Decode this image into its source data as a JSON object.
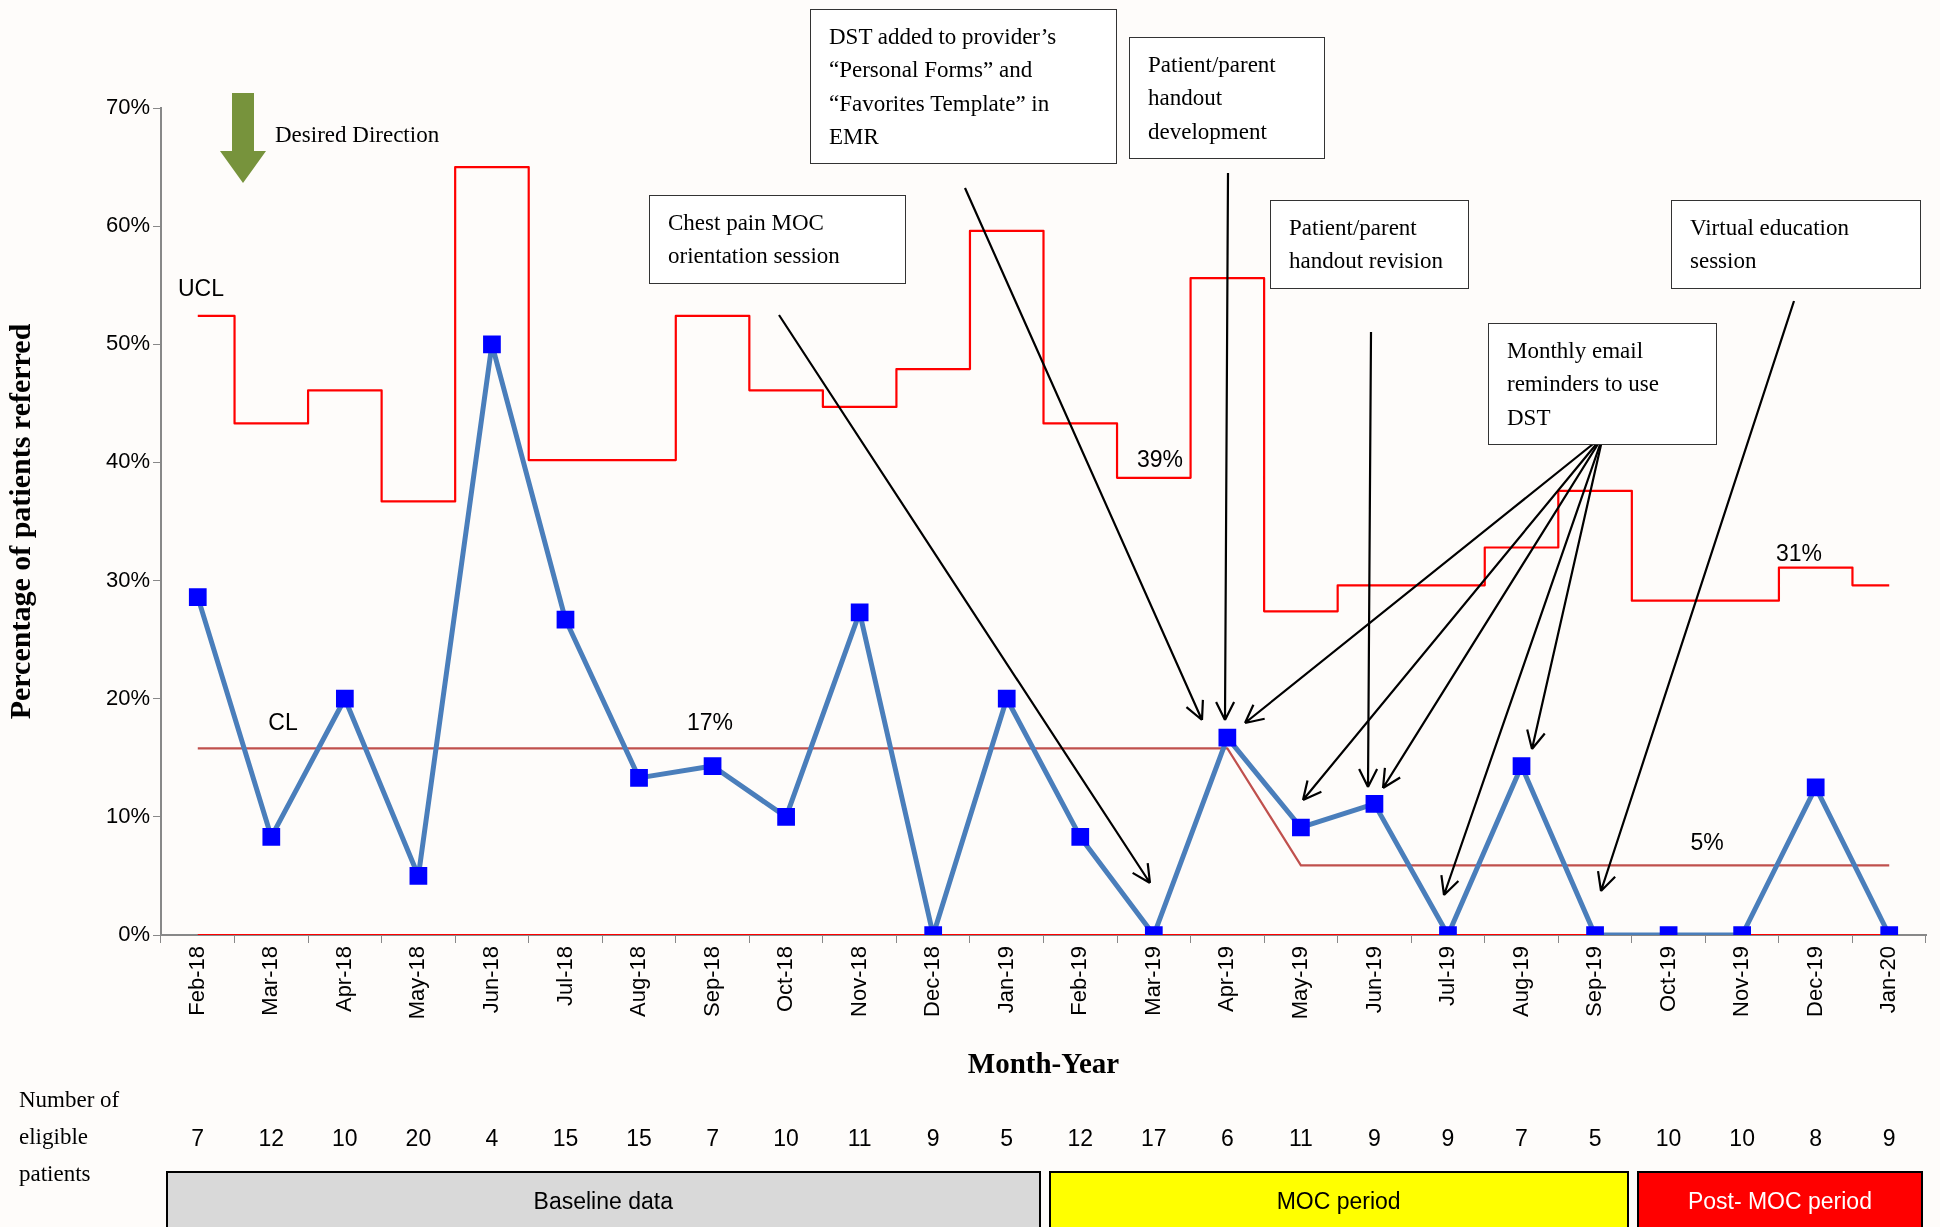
{
  "chart_data": {
    "type": "line",
    "xlabel": "Month-Year",
    "ylabel": "Percentage of patients referred",
    "categories": [
      "Feb-18",
      "Mar-18",
      "Apr-18",
      "May-18",
      "Jun-18",
      "Jul-18",
      "Aug-18",
      "Sep-18",
      "Oct-18",
      "Nov-18",
      "Dec-18",
      "Jan-19",
      "Feb-19",
      "Mar-19",
      "Apr-19",
      "May-19",
      "Jun-19",
      "Jul-19",
      "Aug-19",
      "Sep-19",
      "Oct-19",
      "Nov-19",
      "Dec-19",
      "Jan-20"
    ],
    "series": [
      {
        "type": "line",
        "color": "#4a7ebb",
        "marker": "square",
        "colors": [
          "#0000ff",
          "#0000ff",
          "#0000ff",
          "#0000ff",
          "#0000ff",
          "#0000ff",
          "#0000ff",
          "#0000ff",
          "#0000ff",
          "#0000ff",
          "#0000ff",
          "#0000ff",
          "#0000ff",
          "#0000ff",
          "#0000ff",
          "#0000ff",
          "#0000ff",
          "#0000ff",
          "#0000ff",
          "#0000ff",
          "#0000ff",
          "#0000ff",
          "#0000ff",
          "#0000ff"
        ],
        "values": [
          28.6,
          8.3,
          20,
          5,
          50,
          26.7,
          13.3,
          14.3,
          10,
          27.3,
          0,
          20,
          8.3,
          0,
          16.7,
          9.1,
          11.1,
          0,
          14.3,
          0,
          0,
          0,
          12.5,
          0
        ]
      },
      {
        "type": "step",
        "color": "#ff0000",
        "marker": "none",
        "values": [
          52.4,
          43.3,
          46.1,
          36.7,
          65.0,
          40.2,
          40.2,
          52.4,
          46.1,
          44.7,
          47.9,
          59.6,
          43.3,
          38.7,
          55.6,
          27.4,
          29.6,
          29.6,
          32.8,
          37.6,
          28.3,
          28.3,
          31.1,
          29.6
        ]
      },
      {
        "type": "line",
        "color": "#c0504d",
        "marker": "none",
        "values": [
          15.8,
          15.8,
          15.8,
          15.8,
          15.8,
          15.8,
          15.8,
          15.8,
          15.8,
          15.8,
          15.8,
          15.8,
          15.8,
          15.8,
          15.8,
          5.9,
          5.9,
          5.9,
          5.9,
          5.9,
          5.9,
          5.9,
          5.9,
          5.9
        ]
      },
      {
        "type": "line",
        "color": "#ff0000",
        "marker": "none",
        "values": [
          0,
          0,
          0,
          0,
          0,
          0,
          0,
          0,
          0,
          0,
          0,
          0,
          0,
          0,
          0,
          0,
          0,
          0,
          0,
          0,
          0,
          0,
          0,
          0
        ]
      }
    ],
    "ylim": [
      0,
      70
    ],
    "yticks": [
      {
        "value": 0,
        "label": "0%"
      },
      {
        "value": 10,
        "label": "10%"
      },
      {
        "value": 20,
        "label": "20%"
      },
      {
        "value": 30,
        "label": "30%"
      },
      {
        "value": 40,
        "label": "40%"
      },
      {
        "value": 50,
        "label": "50%"
      },
      {
        "value": 60,
        "label": "60%"
      },
      {
        "value": 70,
        "label": "70%"
      }
    ],
    "grid": false,
    "legend": false,
    "line_style": "solid",
    "annotations": [
      "UCL",
      "CL",
      "17%",
      "39%",
      "31%",
      "5%",
      "Desired Direction",
      "Chest pain MOC orientation session",
      "DST added to provider’s “Personal Forms” and “Favorites Template” in EMR",
      "Patient/parent handout development",
      "Patient/parent handout revision",
      "Monthly email reminders to use DST",
      "Virtual education session",
      "Number of eligible patients",
      "7",
      "12",
      "10",
      "20",
      "4",
      "15",
      "15",
      "7",
      "10",
      "11",
      "9",
      "5",
      "12",
      "17",
      "6",
      "11",
      "9",
      "9",
      "7",
      "5",
      "10",
      "10",
      "8",
      "9",
      "Baseline data",
      "MOC period",
      "Post- MOC period"
    ]
  }
}
